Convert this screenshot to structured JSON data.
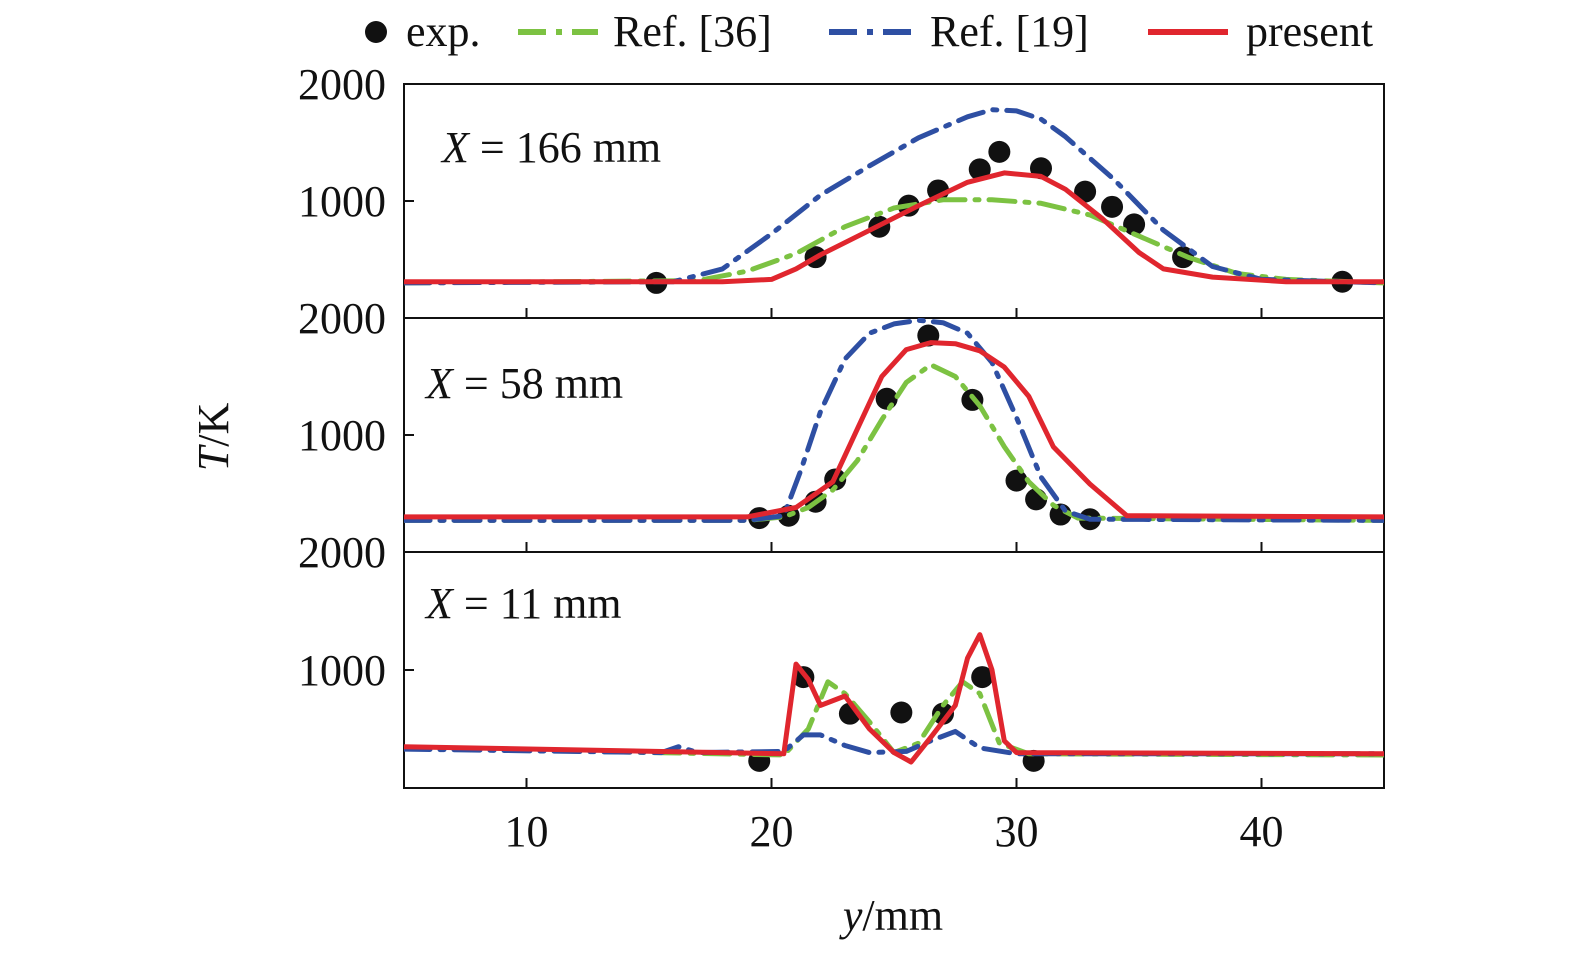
{
  "legend": {
    "items": [
      {
        "label": "exp.",
        "color": "#111111",
        "style": "marker"
      },
      {
        "label": "Ref. [36]",
        "color": "#7cc242",
        "style": "dash-dot"
      },
      {
        "label": "Ref. [19]",
        "color": "#2e4fa3",
        "style": "dash-dot"
      },
      {
        "label": "present",
        "color": "#e0262e",
        "style": "solid"
      }
    ]
  },
  "axes": {
    "x_title_italic": "y",
    "x_title_unit": "/mm",
    "y_title_italic": "T",
    "y_title_unit": "/K"
  },
  "chart_data": {
    "type": "line",
    "x_ticks": [
      10,
      20,
      30,
      40
    ],
    "xlim": [
      5,
      45
    ],
    "panels": [
      {
        "label_italic": "X",
        "label_rest": " = 166 mm",
        "ylim": [
          0,
          2000
        ],
        "y_tick_labels": [
          {
            "value": 2000,
            "text": "2000"
          },
          {
            "value": 1000,
            "text": "1000"
          }
        ],
        "series": [
          {
            "name": "exp.",
            "points": [
              [
                15.3,
                300
              ],
              [
                21.8,
                520
              ],
              [
                24.4,
                780
              ],
              [
                25.6,
                960
              ],
              [
                26.8,
                1090
              ],
              [
                28.5,
                1270
              ],
              [
                29.3,
                1420
              ],
              [
                31,
                1280
              ],
              [
                32.8,
                1080
              ],
              [
                33.9,
                950
              ],
              [
                34.8,
                800
              ],
              [
                36.8,
                520
              ],
              [
                43.3,
                310
              ]
            ]
          },
          {
            "name": "Ref. [36]",
            "points": [
              [
                5,
                300
              ],
              [
                17,
                320
              ],
              [
                19,
                400
              ],
              [
                21,
                550
              ],
              [
                23,
                780
              ],
              [
                25,
                940
              ],
              [
                27,
                1010
              ],
              [
                29,
                1010
              ],
              [
                31,
                980
              ],
              [
                33,
                880
              ],
              [
                35,
                700
              ],
              [
                37,
                520
              ],
              [
                39,
                380
              ],
              [
                41,
                330
              ],
              [
                45,
                300
              ]
            ]
          },
          {
            "name": "Ref. [19]",
            "points": [
              [
                5,
                300
              ],
              [
                16,
                310
              ],
              [
                18,
                420
              ],
              [
                20,
                720
              ],
              [
                22,
                1050
              ],
              [
                24,
                1300
              ],
              [
                26,
                1540
              ],
              [
                28,
                1720
              ],
              [
                29,
                1780
              ],
              [
                30,
                1770
              ],
              [
                31,
                1700
              ],
              [
                32,
                1550
              ],
              [
                34,
                1180
              ],
              [
                36,
                750
              ],
              [
                38,
                440
              ],
              [
                40,
                330
              ],
              [
                45,
                300
              ]
            ]
          },
          {
            "name": "present",
            "points": [
              [
                5,
                310
              ],
              [
                18,
                310
              ],
              [
                20,
                330
              ],
              [
                21,
                420
              ],
              [
                22,
                540
              ],
              [
                24,
                750
              ],
              [
                26,
                960
              ],
              [
                28,
                1160
              ],
              [
                29.5,
                1240
              ],
              [
                31,
                1210
              ],
              [
                32,
                1100
              ],
              [
                33.5,
                850
              ],
              [
                35,
                560
              ],
              [
                36,
                420
              ],
              [
                38,
                350
              ],
              [
                41,
                310
              ],
              [
                45,
                310
              ]
            ]
          }
        ]
      },
      {
        "label_italic": "X",
        "label_rest": " = 58 mm",
        "ylim": [
          0,
          2000
        ],
        "y_tick_labels": [
          {
            "value": 2000,
            "text": "2000"
          },
          {
            "value": 1000,
            "text": "1000"
          }
        ],
        "series": [
          {
            "name": "exp.",
            "points": [
              [
                19.5,
                290
              ],
              [
                20.7,
                310
              ],
              [
                21.8,
                430
              ],
              [
                22.6,
                620
              ],
              [
                24.7,
                1310
              ],
              [
                26.4,
                1850
              ],
              [
                28.2,
                1300
              ],
              [
                30,
                610
              ],
              [
                30.8,
                450
              ],
              [
                31.8,
                320
              ],
              [
                33,
                280
              ]
            ]
          },
          {
            "name": "Ref. [36]",
            "points": [
              [
                5,
                270
              ],
              [
                19,
                270
              ],
              [
                20.5,
                300
              ],
              [
                21.5,
                380
              ],
              [
                22.5,
                530
              ],
              [
                23.5,
                780
              ],
              [
                24.5,
                1130
              ],
              [
                25.5,
                1450
              ],
              [
                26.5,
                1600
              ],
              [
                27.5,
                1500
              ],
              [
                28.5,
                1250
              ],
              [
                29.5,
                900
              ],
              [
                30.5,
                600
              ],
              [
                31.5,
                400
              ],
              [
                32.5,
                290
              ],
              [
                45,
                270
              ]
            ]
          },
          {
            "name": "Ref. [19]",
            "points": [
              [
                5,
                270
              ],
              [
                19,
                270
              ],
              [
                20.5,
                310
              ],
              [
                21.2,
                700
              ],
              [
                22,
                1200
              ],
              [
                23,
                1650
              ],
              [
                24,
                1870
              ],
              [
                25,
                1950
              ],
              [
                26,
                1980
              ],
              [
                27,
                1960
              ],
              [
                28,
                1870
              ],
              [
                29,
                1620
              ],
              [
                30,
                1150
              ],
              [
                31,
                640
              ],
              [
                32,
                350
              ],
              [
                33,
                280
              ],
              [
                45,
                270
              ]
            ]
          },
          {
            "name": "present",
            "points": [
              [
                5,
                300
              ],
              [
                19,
                300
              ],
              [
                21,
                380
              ],
              [
                22.5,
                600
              ],
              [
                23.5,
                1050
              ],
              [
                24.5,
                1500
              ],
              [
                25.5,
                1730
              ],
              [
                26.5,
                1790
              ],
              [
                27.5,
                1780
              ],
              [
                28.5,
                1720
              ],
              [
                29.5,
                1580
              ],
              [
                30.5,
                1330
              ],
              [
                31.5,
                900
              ],
              [
                33,
                580
              ],
              [
                34.5,
                310
              ],
              [
                45,
                300
              ]
            ]
          }
        ]
      },
      {
        "label_italic": "X",
        "label_rest": " = 11 mm",
        "ylim": [
          0,
          2000
        ],
        "y_tick_labels": [
          {
            "value": 2000,
            "text": "2000"
          },
          {
            "value": 1000,
            "text": "1000"
          }
        ],
        "series": [
          {
            "name": "exp.",
            "points": [
              [
                19.5,
                230
              ],
              [
                21.3,
                940
              ],
              [
                23.2,
                630
              ],
              [
                25.3,
                640
              ],
              [
                27,
                630
              ],
              [
                28.6,
                940
              ],
              [
                30.7,
                230
              ]
            ]
          },
          {
            "name": "Ref. [36]",
            "points": [
              [
                5,
                340
              ],
              [
                20.5,
                280
              ],
              [
                21.5,
                500
              ],
              [
                22.3,
                900
              ],
              [
                23,
                800
              ],
              [
                24,
                560
              ],
              [
                25,
                300
              ],
              [
                26,
                380
              ],
              [
                27,
                700
              ],
              [
                27.8,
                900
              ],
              [
                28.5,
                800
              ],
              [
                29.3,
                380
              ],
              [
                30.5,
                290
              ],
              [
                45,
                280
              ]
            ]
          },
          {
            "name": "Ref. [19]",
            "points": [
              [
                5,
                330
              ],
              [
                15.5,
                300
              ],
              [
                16.2,
                350
              ],
              [
                17,
                300
              ],
              [
                20.5,
                310
              ],
              [
                21.3,
                450
              ],
              [
                22,
                450
              ],
              [
                23,
                360
              ],
              [
                24,
                300
              ],
              [
                25.5,
                310
              ],
              [
                26.5,
                400
              ],
              [
                27.5,
                480
              ],
              [
                28.5,
                340
              ],
              [
                30,
                290
              ],
              [
                45,
                290
              ]
            ]
          },
          {
            "name": "present",
            "points": [
              [
                5,
                350
              ],
              [
                20.5,
                290
              ],
              [
                21,
                1050
              ],
              [
                21.5,
                920
              ],
              [
                22,
                700
              ],
              [
                23,
                780
              ],
              [
                24,
                500
              ],
              [
                25,
                300
              ],
              [
                25.7,
                220
              ],
              [
                26.5,
                430
              ],
              [
                27.5,
                700
              ],
              [
                28,
                1100
              ],
              [
                28.5,
                1300
              ],
              [
                29,
                1000
              ],
              [
                29.5,
                400
              ],
              [
                30,
                300
              ],
              [
                45,
                290
              ]
            ]
          }
        ]
      }
    ]
  }
}
